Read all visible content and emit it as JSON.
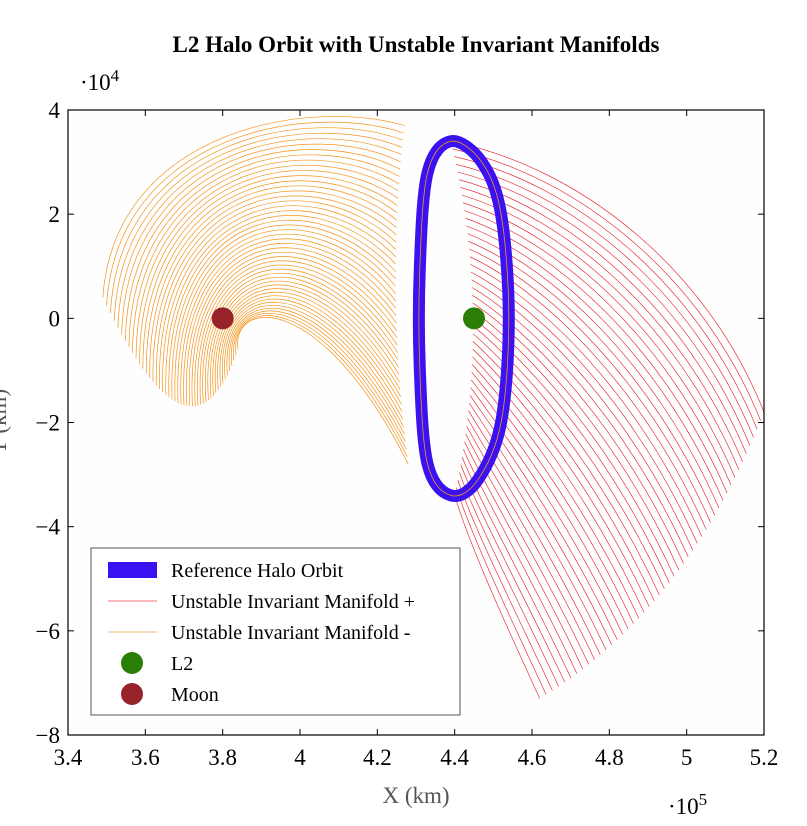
{
  "chart_data": {
    "type": "line",
    "title": "L2 Halo Orbit with Unstable Invariant Manifolds",
    "xlabel": "X (km)",
    "ylabel": "Y (km)",
    "x_multiplier": "·10",
    "x_multiplier_exp": "5",
    "y_multiplier": "·10",
    "y_multiplier_exp": "4",
    "xlim": [
      3.4,
      5.2
    ],
    "ylim": [
      -8,
      4
    ],
    "xticks": [
      "3.4",
      "3.6",
      "3.8",
      "4",
      "4.2",
      "4.4",
      "4.6",
      "4.8",
      "5",
      "5.2"
    ],
    "yticks": [
      "−8",
      "−6",
      "−4",
      "−2",
      "0",
      "2",
      "4"
    ],
    "grid": false,
    "legend_position": "bottom-left",
    "colors": {
      "halo": "#3a12f2",
      "manifold_plus": "#e8141e",
      "manifold_minus": "#f49419",
      "l2": "#2a7d05",
      "moon": "#98222a"
    },
    "series": [
      {
        "name": "Reference Halo Orbit",
        "x": [
          4.39,
          4.47,
          4.52,
          4.54,
          4.52,
          4.46,
          4.39,
          4.33,
          4.31,
          4.31,
          4.33
        ],
        "y": [
          3.4,
          3.0,
          2.0,
          0,
          -2.0,
          -3.1,
          -3.4,
          -2.8,
          -1.0,
          1.0,
          2.8
        ]
      },
      {
        "name": "Unstable Invariant Manifold +",
        "x_end_range": [
          4.62,
          5.2
        ],
        "y_end_range": [
          -7.4,
          -1.8
        ]
      },
      {
        "name": "Unstable Invariant Manifold -",
        "x_end_range": [
          3.49,
          3.85
        ],
        "y_end_range": [
          -2.2,
          0.5
        ],
        "y_max": 3.9
      },
      {
        "name": "L2",
        "x": [
          4.45
        ],
        "y": [
          0
        ]
      },
      {
        "name": "Moon",
        "x": [
          3.8
        ],
        "y": [
          0
        ]
      }
    ]
  }
}
